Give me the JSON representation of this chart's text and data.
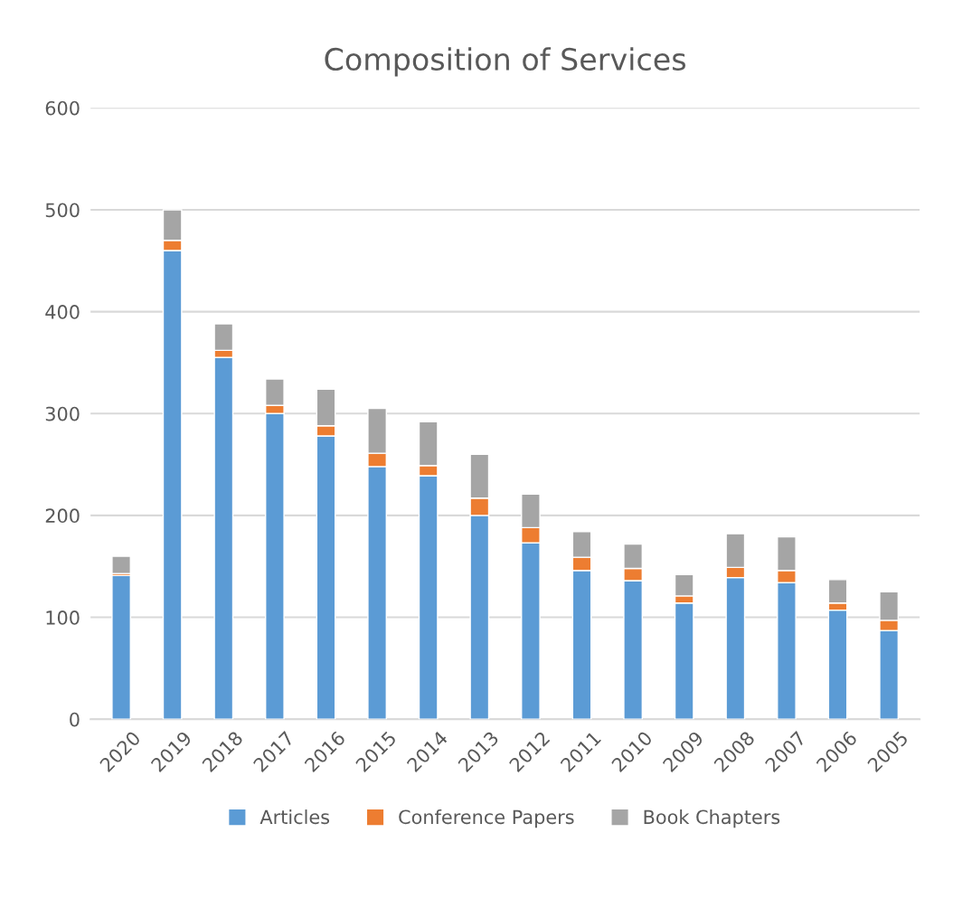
{
  "chart_data": {
    "type": "bar",
    "title": "Composition of Services",
    "stacked": true,
    "categories": [
      "2020",
      "2019",
      "2018",
      "2017",
      "2016",
      "2015",
      "2014",
      "2013",
      "2012",
      "2011",
      "2010",
      "2009",
      "2008",
      "2007",
      "2006",
      "2005"
    ],
    "series": [
      {
        "name": "Articles",
        "color": "#5b9bd5",
        "values": [
          141,
          460,
          355,
          300,
          278,
          248,
          239,
          200,
          173,
          146,
          136,
          114,
          139,
          134,
          107,
          87
        ]
      },
      {
        "name": "Conference Papers",
        "color": "#ed7d31",
        "values": [
          2,
          10,
          7,
          8,
          10,
          13,
          10,
          17,
          15,
          13,
          12,
          7,
          10,
          12,
          7,
          10
        ]
      },
      {
        "name": "Book Chapters",
        "color": "#a5a5a5",
        "values": [
          17,
          30,
          26,
          26,
          36,
          44,
          43,
          43,
          33,
          25,
          24,
          21,
          33,
          33,
          23,
          28
        ]
      }
    ],
    "ylim": [
      0,
      600
    ],
    "yticks": [
      0,
      100,
      200,
      300,
      400,
      500,
      600
    ],
    "grid": "y",
    "legend": "bottom"
  }
}
